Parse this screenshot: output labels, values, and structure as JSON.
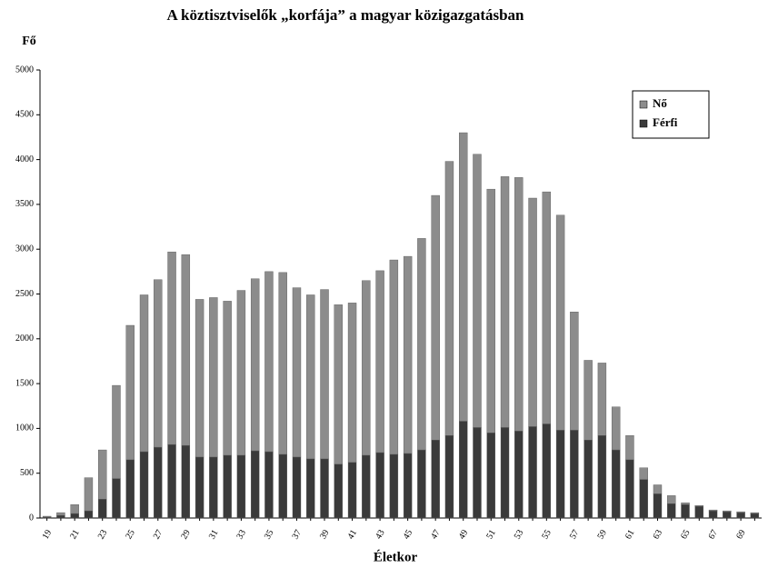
{
  "chart_data": {
    "type": "stacked_bar",
    "title": "A köztisztviselők „korfája” a magyar közigazgatásban",
    "y_label": "Fő",
    "x_label": "Életkor",
    "categories": [
      "19",
      null,
      "21",
      null,
      "23",
      null,
      "25",
      null,
      "27",
      null,
      "29",
      null,
      "31",
      null,
      "33",
      null,
      "35",
      null,
      "37",
      null,
      "39",
      null,
      "41",
      null,
      "43",
      null,
      "45",
      null,
      "47",
      null,
      "49",
      null,
      "51",
      null,
      "53",
      null,
      "55",
      null,
      "57",
      null,
      "59",
      null,
      "61",
      null,
      "63",
      null,
      "65",
      null,
      "67",
      null,
      "69",
      null
    ],
    "series": [
      {
        "name": "Férfi",
        "color": "#3a3a3a",
        "values": [
          10,
          30,
          50,
          80,
          210,
          440,
          650,
          740,
          790,
          820,
          810,
          680,
          680,
          700,
          700,
          750,
          740,
          710,
          680,
          660,
          660,
          600,
          620,
          700,
          730,
          710,
          720,
          760,
          870,
          920,
          1080,
          1010,
          950,
          1010,
          970,
          1020,
          1050,
          980,
          980,
          870,
          920,
          760,
          650,
          430,
          270,
          160,
          150,
          130,
          80,
          70,
          60,
          50
        ]
      },
      {
        "name": "Nő",
        "color": "#8c8c8c",
        "values": [
          10,
          30,
          100,
          370,
          550,
          1040,
          1500,
          1750,
          1870,
          2150,
          2130,
          1760,
          1780,
          1720,
          1840,
          1920,
          2010,
          2030,
          1890,
          1830,
          1890,
          1780,
          1780,
          1950,
          2030,
          2170,
          2200,
          2360,
          2730,
          3060,
          3220,
          3050,
          2720,
          2800,
          2830,
          2550,
          2590,
          2400,
          1320,
          890,
          810,
          480,
          270,
          130,
          100,
          90,
          20,
          10,
          10,
          10,
          10,
          10
        ]
      }
    ],
    "ylim": [
      0,
      5000
    ],
    "yticks": [
      0,
      500,
      1000,
      1500,
      2000,
      2500,
      3000,
      3500,
      4000,
      4500,
      5000
    ],
    "legend": "upper right"
  }
}
